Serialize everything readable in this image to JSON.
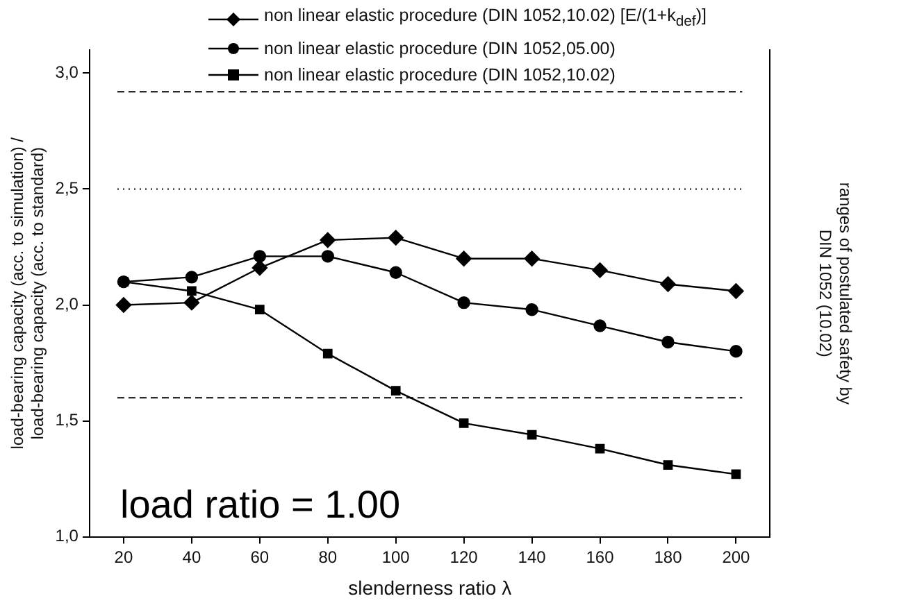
{
  "chart_data": {
    "type": "line",
    "xlabel": "slenderness ratio λ",
    "ylabel": "load-bearing capacity (acc. to simulation) / load-bearing capacity (acc. to standard)",
    "y2label": "ranges of postulated safety by DIN 1052 (10.02)",
    "categories": [
      "20",
      "40",
      "60",
      "80",
      "100",
      "120",
      "140",
      "160",
      "180",
      "200"
    ],
    "series": [
      {
        "name": "non linear elastic procedure (DIN 1052,10.02) [E/(1+k$_{def}$)]",
        "color": "#000000",
        "marker": "diamond",
        "values": [
          2.0,
          2.01,
          2.16,
          2.28,
          2.29,
          2.2,
          2.2,
          2.15,
          2.09,
          2.06
        ]
      },
      {
        "name": "non linear elastic procedure (DIN 1052,05.00)",
        "color": "#000000",
        "marker": "circle",
        "values": [
          2.1,
          2.12,
          2.21,
          2.21,
          2.14,
          2.01,
          1.98,
          1.91,
          1.84,
          1.8
        ]
      },
      {
        "name": "non linear elastic procedure (DIN 1052,10.02)",
        "color": "#000000",
        "marker": "square",
        "values": [
          2.1,
          2.06,
          1.98,
          1.79,
          1.63,
          1.49,
          1.44,
          1.38,
          1.31,
          1.27
        ]
      }
    ],
    "ylim": [
      1.0,
      3.1
    ],
    "yticks": [
      {
        "value": 1,
        "label": "1,0"
      },
      {
        "value": 1.5,
        "label": "1,5"
      },
      {
        "value": 2,
        "label": "2,0"
      },
      {
        "value": 2.5,
        "label": "2,5"
      },
      {
        "value": 3,
        "label": "3,0"
      }
    ],
    "ref_lines": [
      {
        "axis": "y",
        "value": 2.92,
        "color": "#000000",
        "line_style": "dashed"
      },
      {
        "axis": "y",
        "value": 2.5,
        "color": "#000000",
        "line_style": "dotted"
      },
      {
        "axis": "y",
        "value": 1.6,
        "color": "#000000",
        "line_style": "dashed"
      }
    ],
    "annotations": [
      "load ratio = 1.00"
    ],
    "legend": "top left",
    "grid": false,
    "line_style": "solid"
  }
}
